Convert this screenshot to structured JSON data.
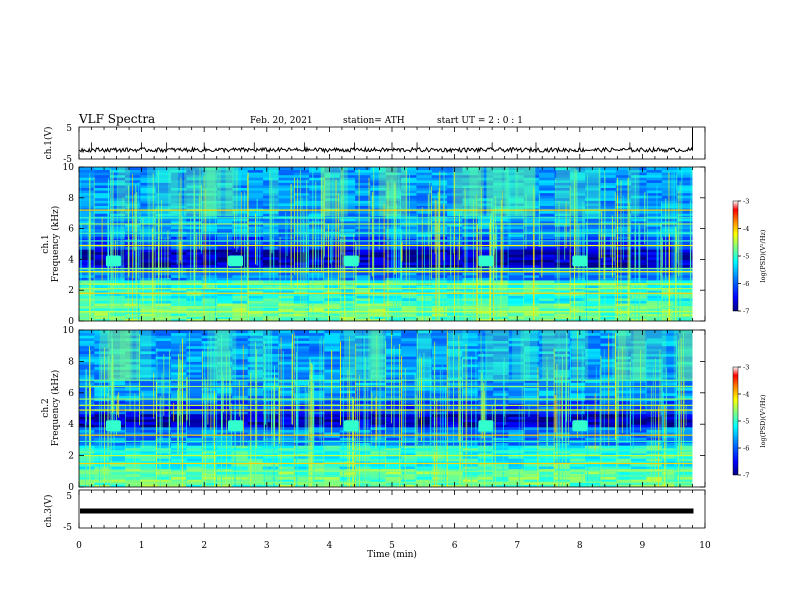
{
  "header": {
    "title": "VLF Spectra",
    "date": "Feb. 20, 2021",
    "station": "station= ATH",
    "start": "start  UT =   2 : 0  : 1"
  },
  "colors": {
    "spectrogram_bg": "#00007a",
    "colorbar_stops": [
      "#000080",
      "#0000ff",
      "#0080ff",
      "#00ffff",
      "#80ff80",
      "#ffff00",
      "#ff8000",
      "#ff0000",
      "#ffffff"
    ]
  },
  "chart_data": [
    {
      "type": "line",
      "name": "ch1-waveform",
      "ylabel": "ch.1(V)",
      "ylim": [
        -5,
        5
      ],
      "y_ticks": [
        "5",
        "-5"
      ],
      "xlim": [
        0,
        10
      ],
      "mean_level_V": -2.3,
      "spikes_at_min": [
        0.2,
        1.0,
        1.4,
        2.0,
        2.8,
        3.6,
        4.4,
        5.0,
        5.4,
        6.6,
        7.3,
        8.0,
        8.8,
        9.8
      ],
      "end_spike": {
        "x": 9.8,
        "y": 5
      }
    },
    {
      "type": "heatmap",
      "name": "ch1-spectrogram",
      "ylabel": "ch.1\nFrequency  (kHz)",
      "ylim": [
        0,
        10
      ],
      "y_ticks": [
        "0",
        "2",
        "4",
        "6",
        "8",
        "10"
      ],
      "xlim": [
        0,
        10
      ],
      "data_end_min": 9.8,
      "horizontal_lines_khz": [
        0.3,
        0.6,
        0.9,
        1.8,
        2.1,
        2.4,
        3.2,
        3.4,
        4.9,
        5.2,
        5.7,
        6.3,
        6.7,
        7.2
      ],
      "quiet_band_khz": [
        3.5,
        4.7
      ],
      "tone_bursts": [
        {
          "t": 0.55,
          "f": 3.9
        },
        {
          "t": 2.5,
          "f": 3.9
        },
        {
          "t": 4.35,
          "f": 3.9
        },
        {
          "t": 6.5,
          "f": 3.9
        },
        {
          "t": 8.0,
          "f": 3.9
        }
      ],
      "colorbar": {
        "label": "log(PSD)(V²/Hz)",
        "ticks": [
          "-3",
          "-4",
          "-5",
          "-6",
          "-7"
        ],
        "range": [
          -7,
          -3
        ]
      }
    },
    {
      "type": "heatmap",
      "name": "ch2-spectrogram",
      "ylabel": "ch.2\nFrequency  (kHz)",
      "ylim": [
        0,
        10
      ],
      "y_ticks": [
        "0",
        "2",
        "4",
        "6",
        "8",
        "10"
      ],
      "xlim": [
        0,
        10
      ],
      "data_end_min": 9.8,
      "horizontal_lines_khz": [
        0.3,
        0.7,
        1.0,
        1.5,
        2.0,
        2.3,
        2.9,
        3.3,
        4.9,
        5.2,
        5.6,
        6.4,
        6.8
      ],
      "quiet_band_khz": [
        3.8,
        4.6
      ],
      "tone_bursts": [
        {
          "t": 0.55,
          "f": 3.9
        },
        {
          "t": 2.5,
          "f": 3.9
        },
        {
          "t": 4.35,
          "f": 3.9
        },
        {
          "t": 6.5,
          "f": 3.9
        },
        {
          "t": 8.0,
          "f": 3.9
        }
      ],
      "colorbar": {
        "label": "log(PSD)(V²/Hz)",
        "ticks": [
          "-3",
          "-4",
          "-5",
          "-6",
          "-7"
        ],
        "range": [
          -7,
          -3
        ]
      }
    },
    {
      "type": "line",
      "name": "ch3-waveform",
      "ylabel": "ch.3(V)",
      "ylim": [
        -5,
        5
      ],
      "y_ticks": [
        "5",
        "-5"
      ],
      "xlim": [
        0,
        10
      ],
      "level_V": 0.0
    }
  ],
  "x_axis": {
    "label": "Time  (min)",
    "ticks": [
      "0",
      "1",
      "2",
      "3",
      "4",
      "5",
      "6",
      "7",
      "8",
      "9",
      "10"
    ]
  }
}
